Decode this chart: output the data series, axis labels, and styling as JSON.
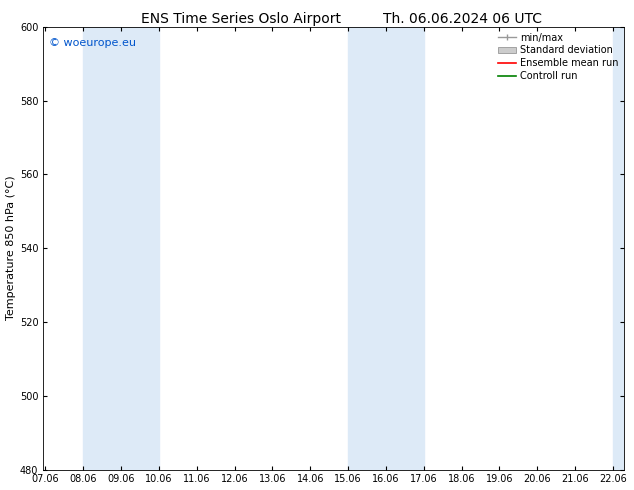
{
  "title_left": "ENS Time Series Oslo Airport",
  "title_right": "Th. 06.06.2024 06 UTC",
  "ylabel": "Temperature 850 hPa (°C)",
  "xlim_start": 7.0,
  "xlim_end": 22.36,
  "ylim_bottom": 480,
  "ylim_top": 600,
  "yticks": [
    480,
    500,
    520,
    540,
    560,
    580,
    600
  ],
  "xtick_labels": [
    "07.06",
    "08.06",
    "09.06",
    "10.06",
    "11.06",
    "12.06",
    "13.06",
    "14.06",
    "15.06",
    "16.06",
    "17.06",
    "18.06",
    "19.06",
    "20.06",
    "21.06",
    "22.06"
  ],
  "xtick_positions": [
    7.06,
    8.06,
    9.06,
    10.06,
    11.06,
    12.06,
    13.06,
    14.06,
    15.06,
    16.06,
    17.06,
    18.06,
    19.06,
    20.06,
    21.06,
    22.06
  ],
  "shaded_bands": [
    {
      "x_start": 8.06,
      "x_end": 10.06
    },
    {
      "x_start": 15.06,
      "x_end": 17.06
    },
    {
      "x_start": 22.06,
      "x_end": 22.5
    }
  ],
  "shade_color": "#ddeaf7",
  "watermark_text": "© woeurope.eu",
  "watermark_color": "#0055cc",
  "legend_entries": [
    {
      "label": "min/max",
      "color": "#999999",
      "type": "minmax"
    },
    {
      "label": "Standard deviation",
      "color": "#cccccc",
      "type": "fill"
    },
    {
      "label": "Ensemble mean run",
      "color": "#ff0000",
      "type": "line"
    },
    {
      "label": "Controll run",
      "color": "#008000",
      "type": "line"
    }
  ],
  "bg_color": "#ffffff",
  "title_fontsize": 10,
  "tick_fontsize": 7,
  "ylabel_fontsize": 8,
  "legend_fontsize": 7,
  "watermark_fontsize": 8
}
